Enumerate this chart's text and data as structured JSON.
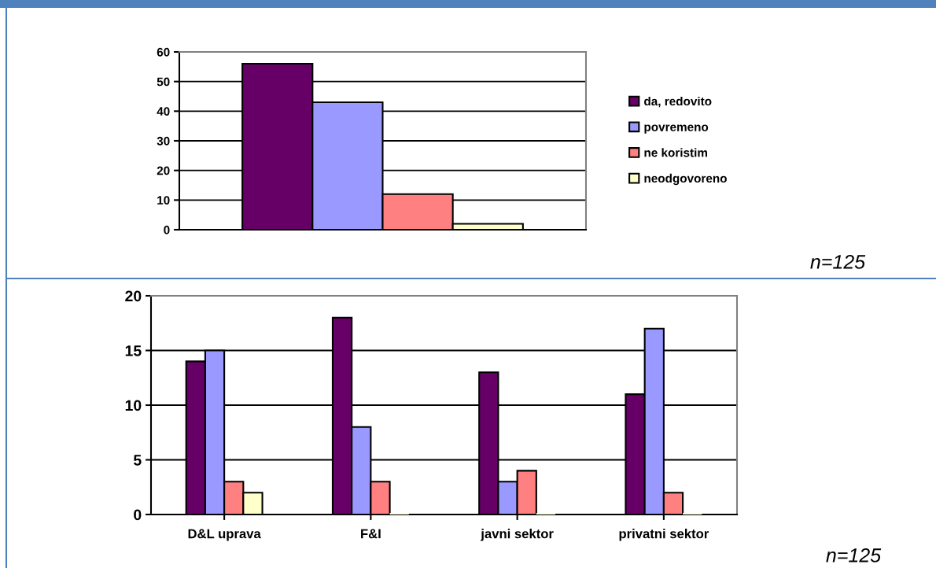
{
  "chart_data": [
    {
      "type": "bar",
      "categories": [
        null
      ],
      "series": [
        {
          "name": "da, redovito",
          "color": "#660066",
          "values": [
            56
          ]
        },
        {
          "name": "povremeno",
          "color": "#9999ff",
          "values": [
            43
          ]
        },
        {
          "name": "ne koristim",
          "color": "#ff8080",
          "values": [
            12
          ]
        },
        {
          "name": "neodgovoreno",
          "color": "#ffffcc",
          "values": [
            2
          ]
        }
      ],
      "ylim": [
        0,
        60
      ],
      "yticks": [
        0,
        10,
        20,
        30,
        40,
        50,
        60
      ],
      "grid": "y",
      "legend": "right",
      "tick_labels": "y",
      "annotations": [
        "n=125"
      ]
    },
    {
      "type": "bar",
      "categories": [
        "D&L uprava",
        "F&I",
        "javni sektor",
        "privatni sektor"
      ],
      "series": [
        {
          "color": "#660066",
          "values": [
            14,
            18,
            13,
            11
          ]
        },
        {
          "color": "#9999ff",
          "values": [
            15,
            8,
            3,
            17
          ]
        },
        {
          "color": "#ff8080",
          "values": [
            3,
            3,
            4,
            2
          ]
        },
        {
          "color": "#ffffcc",
          "values": [
            2,
            0,
            0,
            0
          ]
        }
      ],
      "ylim": [
        0,
        20
      ],
      "yticks": [
        0,
        5,
        10,
        15,
        20
      ],
      "grid": "y",
      "annotations": [
        "n=125"
      ]
    }
  ]
}
